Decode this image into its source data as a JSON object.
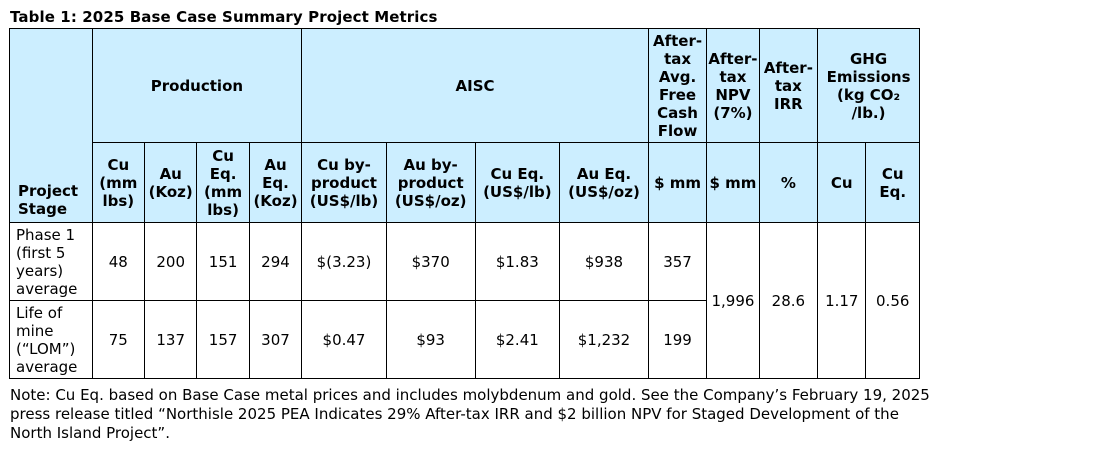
{
  "title": "Table 1: 2025 Base Case Summary Project Metrics",
  "headers": {
    "project_stage": "Project Stage",
    "production": "Production",
    "aisc": "AISC",
    "fcf": "After-tax Avg. Free Cash Flow",
    "npv": "After-tax NPV (7%)",
    "irr": "After-tax IRR",
    "ghg": "GHG Emissions (kg CO₂ /lb.)"
  },
  "subheaders": {
    "cu_mmlbs": "Cu (mm lbs)",
    "au_koz": "Au (Koz)",
    "cueq_mmlbs": "Cu Eq. (mm lbs)",
    "aueq_koz": "Au Eq. (Koz)",
    "cu_byproduct": "Cu by-product (US$/lb)",
    "au_byproduct": "Au by-product (US$/oz)",
    "cueq_uslb": "Cu Eq. (US$/lb)",
    "aueq_usoz": "Au Eq. (US$/oz)",
    "fcf_unit": "$ mm",
    "npv_unit": "$ mm",
    "irr_unit": "%",
    "ghg_cu": "Cu",
    "ghg_cueq": "Cu Eq."
  },
  "rows": [
    {
      "stage": "Phase 1 (first 5 years) average",
      "cu_mmlbs": "48",
      "au_koz": "200",
      "cueq_mmlbs": "151",
      "aueq_koz": "294",
      "cu_byproduct": "$(3.23)",
      "au_byproduct": "$370",
      "cueq_uslb": "$1.83",
      "aueq_usoz": "$938",
      "fcf": "357"
    },
    {
      "stage": "Life of mine (“LOM”) average",
      "cu_mmlbs": "75",
      "au_koz": "137",
      "cueq_mmlbs": "157",
      "aueq_koz": "307",
      "cu_byproduct": "$0.47",
      "au_byproduct": "$93",
      "cueq_uslb": "$2.41",
      "aueq_usoz": "$1,232",
      "fcf": "199"
    }
  ],
  "shared": {
    "npv": "1,996",
    "irr": "28.6",
    "ghg_cu": "1.17",
    "ghg_cueq": "0.56"
  },
  "note": "Note: Cu Eq. based on Base Case metal prices and includes molybdenum and gold. See the Company’s February 19, 2025 press release titled “Northisle 2025 PEA Indicates 29% After-tax IRR and $2 billion NPV for Staged Development of the North Island Project”."
}
